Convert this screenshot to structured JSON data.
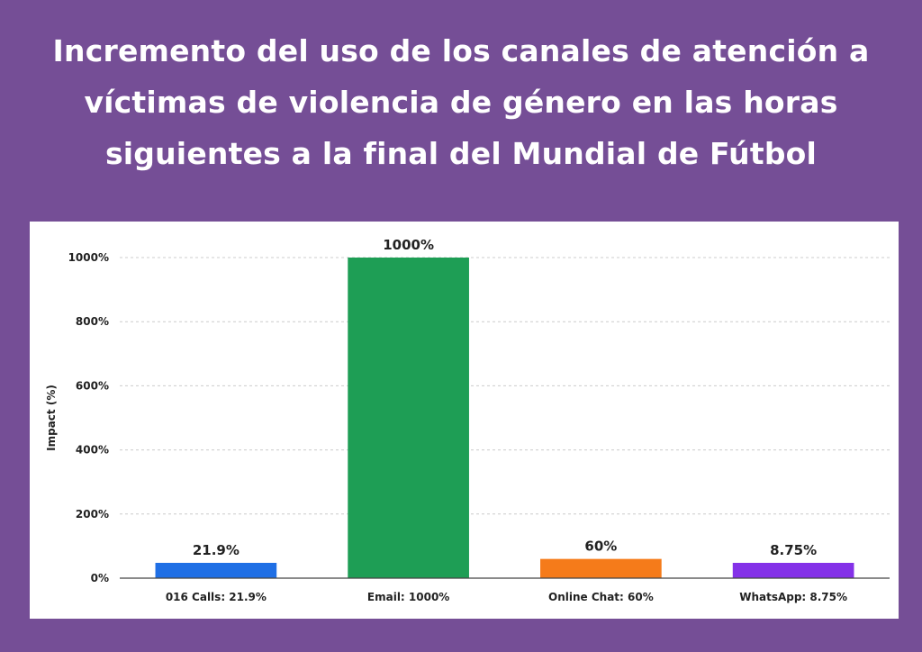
{
  "headline": {
    "line1": "Incremento del uso de los canales de atención a",
    "line2": "víctimas de violencia de género en las horas",
    "line3": "siguientes a la final del Mundial de Fútbol"
  },
  "colors": {
    "background": "#754e96",
    "card": "#ffffff",
    "bars": [
      "#1f6fe5",
      "#1e9e55",
      "#f57b1a",
      "#8431e8"
    ]
  },
  "chart_data": {
    "type": "bar",
    "title": "Incremento del uso de los canales de atención a víctimas de violencia de género en las horas siguientes a la final del Mundial de Fútbol",
    "categories": [
      "016 Calls: 21.9%",
      "Email: 1000%",
      "Online Chat: 60%",
      "WhatsApp: 8.75%"
    ],
    "values": [
      21.9,
      1000,
      60,
      8.75
    ],
    "value_labels": [
      "21.9%",
      "1000%",
      "60%",
      "8.75%"
    ],
    "ylabel": "Impact (%)",
    "ylim": [
      0,
      1000
    ],
    "yticks": [
      0,
      200,
      400,
      600,
      800,
      1000
    ],
    "ytick_labels": [
      "0%",
      "200%",
      "400%",
      "600%",
      "800%",
      "1000%"
    ],
    "grid": true
  }
}
